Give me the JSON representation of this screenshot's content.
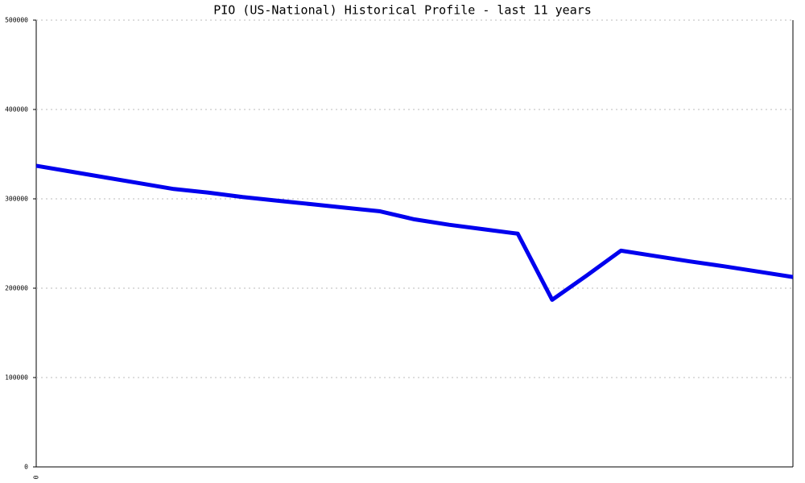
{
  "chart_data": {
    "type": "line",
    "title": "PIO (US-National) Historical Profile - last 11 years",
    "categories": [
      "0",
      null,
      null,
      null,
      null,
      null,
      null,
      null,
      null,
      null,
      null,
      null,
      null,
      null,
      null,
      null,
      null,
      null,
      null,
      null,
      null,
      null,
      null
    ],
    "series": [
      {
        "name": null,
        "color": "#0000ee",
        "values": [
          337000,
          330500,
          324000,
          317500,
          311000,
          307000,
          302000,
          298000,
          294000,
          290000,
          286000,
          277000,
          271000,
          266000,
          261000,
          187000,
          214000,
          242000,
          236000,
          230000,
          224500,
          218500,
          212500
        ]
      }
    ],
    "ylim": [
      0,
      500000
    ],
    "yticks": [
      0,
      100000,
      200000,
      300000,
      400000,
      500000
    ],
    "grid": true
  }
}
